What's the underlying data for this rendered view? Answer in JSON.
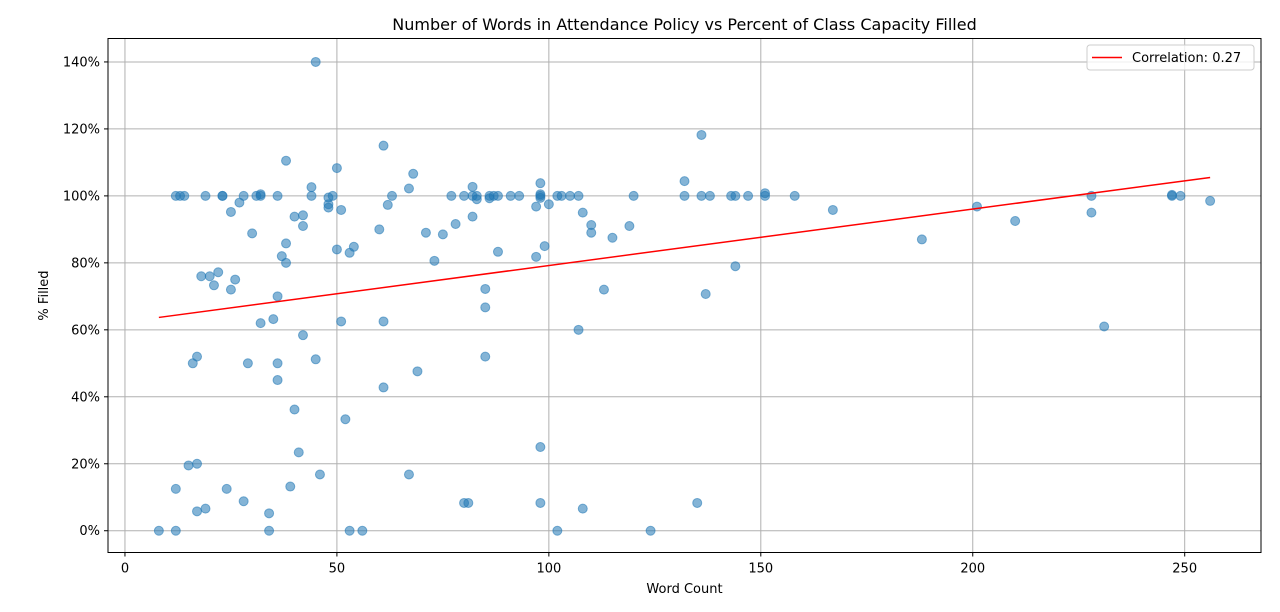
{
  "chart_data": {
    "type": "scatter",
    "title": "Number of Words in Attendance Policy vs Percent of Class Capacity Filled",
    "xlabel": "Word Count",
    "ylabel": "% Filled",
    "xlim": [
      -4,
      268
    ],
    "ylim": [
      -6.5,
      147
    ],
    "xticks": [
      0,
      50,
      100,
      150,
      200,
      250
    ],
    "xtick_labels": [
      "0",
      "50",
      "100",
      "150",
      "200",
      "250"
    ],
    "yticks": [
      0,
      20,
      40,
      60,
      80,
      100,
      120,
      140
    ],
    "ytick_labels": [
      "0%",
      "20%",
      "40%",
      "60%",
      "80%",
      "100%",
      "120%",
      "140%"
    ],
    "grid": true,
    "legend": {
      "position": "top-right",
      "entries": [
        "Correlation: 0.27"
      ]
    },
    "colors": {
      "points": "#1f77b4",
      "trend": "#ff0000",
      "grid": "#b0b0b0"
    },
    "series": [
      {
        "points": [
          [
            8,
            0
          ],
          [
            12,
            0
          ],
          [
            12,
            12.5
          ],
          [
            12,
            100
          ],
          [
            13,
            100
          ],
          [
            14,
            100
          ],
          [
            15,
            19.5
          ],
          [
            16,
            50
          ],
          [
            17,
            52
          ],
          [
            17,
            20
          ],
          [
            17,
            5.8
          ],
          [
            18,
            76
          ],
          [
            19,
            100
          ],
          [
            19,
            6.6
          ],
          [
            20,
            76
          ],
          [
            21,
            73.3
          ],
          [
            22,
            77.2
          ],
          [
            23,
            100
          ],
          [
            23,
            100
          ],
          [
            24,
            12.5
          ],
          [
            25,
            72
          ],
          [
            25,
            95.2
          ],
          [
            26,
            75
          ],
          [
            27,
            98
          ],
          [
            28,
            100
          ],
          [
            28,
            8.8
          ],
          [
            29,
            50
          ],
          [
            30,
            88.8
          ],
          [
            31,
            100
          ],
          [
            32,
            100.5
          ],
          [
            32,
            100
          ],
          [
            32,
            62
          ],
          [
            34,
            5.2
          ],
          [
            34,
            0
          ],
          [
            35,
            63.2
          ],
          [
            36,
            100
          ],
          [
            36,
            70
          ],
          [
            36,
            50
          ],
          [
            36,
            45
          ],
          [
            37,
            82
          ],
          [
            38,
            110.5
          ],
          [
            38,
            85.8
          ],
          [
            38,
            80
          ],
          [
            39,
            13.2
          ],
          [
            40,
            93.8
          ],
          [
            40,
            36.2
          ],
          [
            41,
            23.4
          ],
          [
            42,
            94.2
          ],
          [
            42,
            91
          ],
          [
            42,
            58.4
          ],
          [
            44,
            102.6
          ],
          [
            44,
            100
          ],
          [
            45,
            51.2
          ],
          [
            45,
            140
          ],
          [
            46,
            16.8
          ],
          [
            48,
            99.5
          ],
          [
            48,
            97.5
          ],
          [
            48,
            96.5
          ],
          [
            49,
            100
          ],
          [
            50,
            108.3
          ],
          [
            50,
            84
          ],
          [
            51,
            95.8
          ],
          [
            51,
            62.5
          ],
          [
            52,
            33.3
          ],
          [
            53,
            83
          ],
          [
            53,
            0
          ],
          [
            54,
            84.8
          ],
          [
            56,
            0
          ],
          [
            60,
            90
          ],
          [
            61,
            115
          ],
          [
            61,
            62.5
          ],
          [
            61,
            42.8
          ],
          [
            62,
            97.3
          ],
          [
            63,
            100
          ],
          [
            67,
            102.2
          ],
          [
            67,
            16.8
          ],
          [
            68,
            106.6
          ],
          [
            69,
            47.6
          ],
          [
            71,
            89
          ],
          [
            73,
            80.6
          ],
          [
            75,
            88.5
          ],
          [
            77,
            100
          ],
          [
            78,
            91.6
          ],
          [
            80,
            100
          ],
          [
            80,
            8.3
          ],
          [
            81,
            8.3
          ],
          [
            82,
            102.7
          ],
          [
            82,
            100
          ],
          [
            82,
            93.8
          ],
          [
            83,
            100
          ],
          [
            83,
            99
          ],
          [
            85,
            72.2
          ],
          [
            85,
            66.7
          ],
          [
            85,
            52
          ],
          [
            86,
            100
          ],
          [
            86,
            99.3
          ],
          [
            87,
            100
          ],
          [
            88,
            100
          ],
          [
            88,
            83.3
          ],
          [
            91,
            100
          ],
          [
            93,
            100
          ],
          [
            97,
            96.8
          ],
          [
            97,
            81.8
          ],
          [
            98,
            103.8
          ],
          [
            98,
            100.5
          ],
          [
            98,
            100
          ],
          [
            98,
            99.4
          ],
          [
            98,
            25
          ],
          [
            98,
            8.3
          ],
          [
            99,
            85
          ],
          [
            100,
            97.5
          ],
          [
            102,
            100
          ],
          [
            102,
            0
          ],
          [
            103,
            100
          ],
          [
            105,
            100
          ],
          [
            107,
            100
          ],
          [
            107,
            60
          ],
          [
            108,
            95
          ],
          [
            108,
            6.6
          ],
          [
            110,
            91.3
          ],
          [
            110,
            89
          ],
          [
            113,
            72
          ],
          [
            115,
            87.5
          ],
          [
            119,
            91
          ],
          [
            120,
            100
          ],
          [
            124,
            0
          ],
          [
            132,
            104.4
          ],
          [
            132,
            100
          ],
          [
            135,
            8.3
          ],
          [
            136,
            118.2
          ],
          [
            136,
            100
          ],
          [
            137,
            70.7
          ],
          [
            138,
            100
          ],
          [
            143,
            100
          ],
          [
            144,
            100
          ],
          [
            144,
            79
          ],
          [
            147,
            100
          ],
          [
            151,
            100.8
          ],
          [
            151,
            100
          ],
          [
            158,
            100
          ],
          [
            167,
            95.8
          ],
          [
            188,
            87
          ],
          [
            201,
            96.8
          ],
          [
            210,
            92.5
          ],
          [
            228,
            100
          ],
          [
            228,
            95
          ],
          [
            231,
            61
          ],
          [
            247,
            100.3
          ],
          [
            247,
            100
          ],
          [
            249,
            100
          ],
          [
            256,
            98.5
          ]
        ]
      },
      {
        "name": "Correlation: 0.27",
        "type": "line",
        "x": [
          8,
          256
        ],
        "values": [
          63.7,
          105.5
        ]
      }
    ]
  }
}
